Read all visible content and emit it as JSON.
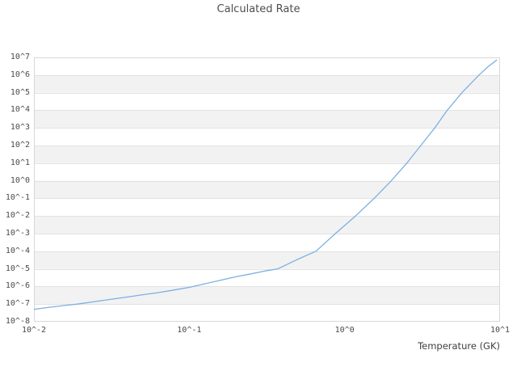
{
  "colors": {
    "line": "#7cb0e3",
    "band_fill": "#f2f2f2",
    "gridline": "#e2e2e2",
    "plot_border": "#d8d8d8",
    "tick_text": "#4a4a4a",
    "title_text": "#4d4d4d"
  },
  "chart_data": {
    "type": "line",
    "title": "Calculated Rate",
    "xlabel": "Temperature (GK)",
    "ylabel": "",
    "x_scale": "log10",
    "y_scale": "log10",
    "xlim_log10": [
      -2,
      1
    ],
    "ylim_log10": [
      -8,
      7
    ],
    "x_ticks": [
      {
        "log10": -2,
        "label": "10^-2"
      },
      {
        "log10": -1,
        "label": "10^-1"
      },
      {
        "log10": 0,
        "label": "10^0"
      },
      {
        "log10": 1,
        "label": "10^1"
      }
    ],
    "y_ticks": [
      {
        "log10": 7,
        "label": "10^7"
      },
      {
        "log10": 6,
        "label": "10^6"
      },
      {
        "log10": 5,
        "label": "10^5"
      },
      {
        "log10": 4,
        "label": "10^4"
      },
      {
        "log10": 3,
        "label": "10^3"
      },
      {
        "log10": 2,
        "label": "10^2"
      },
      {
        "log10": 1,
        "label": "10^1"
      },
      {
        "log10": 0,
        "label": "10^0"
      },
      {
        "log10": -1,
        "label": "10^-1"
      },
      {
        "log10": -2,
        "label": "10^-2"
      },
      {
        "log10": -3,
        "label": "10^-3"
      },
      {
        "log10": -4,
        "label": "10^-4"
      },
      {
        "log10": -5,
        "label": "10^-5"
      },
      {
        "log10": -6,
        "label": "10^-6"
      },
      {
        "log10": -7,
        "label": "10^-7"
      },
      {
        "log10": -8,
        "label": "10^-8"
      }
    ],
    "grid": "horizontal decade gridlines with alternating gray decade bands, no vertical gridlines",
    "legend": "none",
    "series": [
      {
        "name": "Calculated Rate",
        "log10_x": [
          -2.0,
          -1.9,
          -1.8,
          -1.72,
          -1.6,
          -1.5,
          -1.4,
          -1.3,
          -1.2,
          -1.1,
          -1.0,
          -0.9,
          -0.8,
          -0.7,
          -0.6,
          -0.5,
          -0.43,
          -0.3,
          -0.185,
          -0.06,
          0.07,
          0.19,
          0.3,
          0.4,
          0.49,
          0.58,
          0.66,
          0.755,
          0.865,
          0.92,
          0.978
        ],
        "log10_y": [
          -7.3,
          -7.18,
          -7.08,
          -7.0,
          -6.85,
          -6.72,
          -6.6,
          -6.47,
          -6.35,
          -6.2,
          -6.05,
          -5.85,
          -5.65,
          -5.45,
          -5.28,
          -5.1,
          -5.0,
          -4.45,
          -4.0,
          -3.0,
          -2.0,
          -1.0,
          0.0,
          1.0,
          2.0,
          3.0,
          4.0,
          5.0,
          6.0,
          6.45,
          6.85
        ]
      }
    ]
  }
}
